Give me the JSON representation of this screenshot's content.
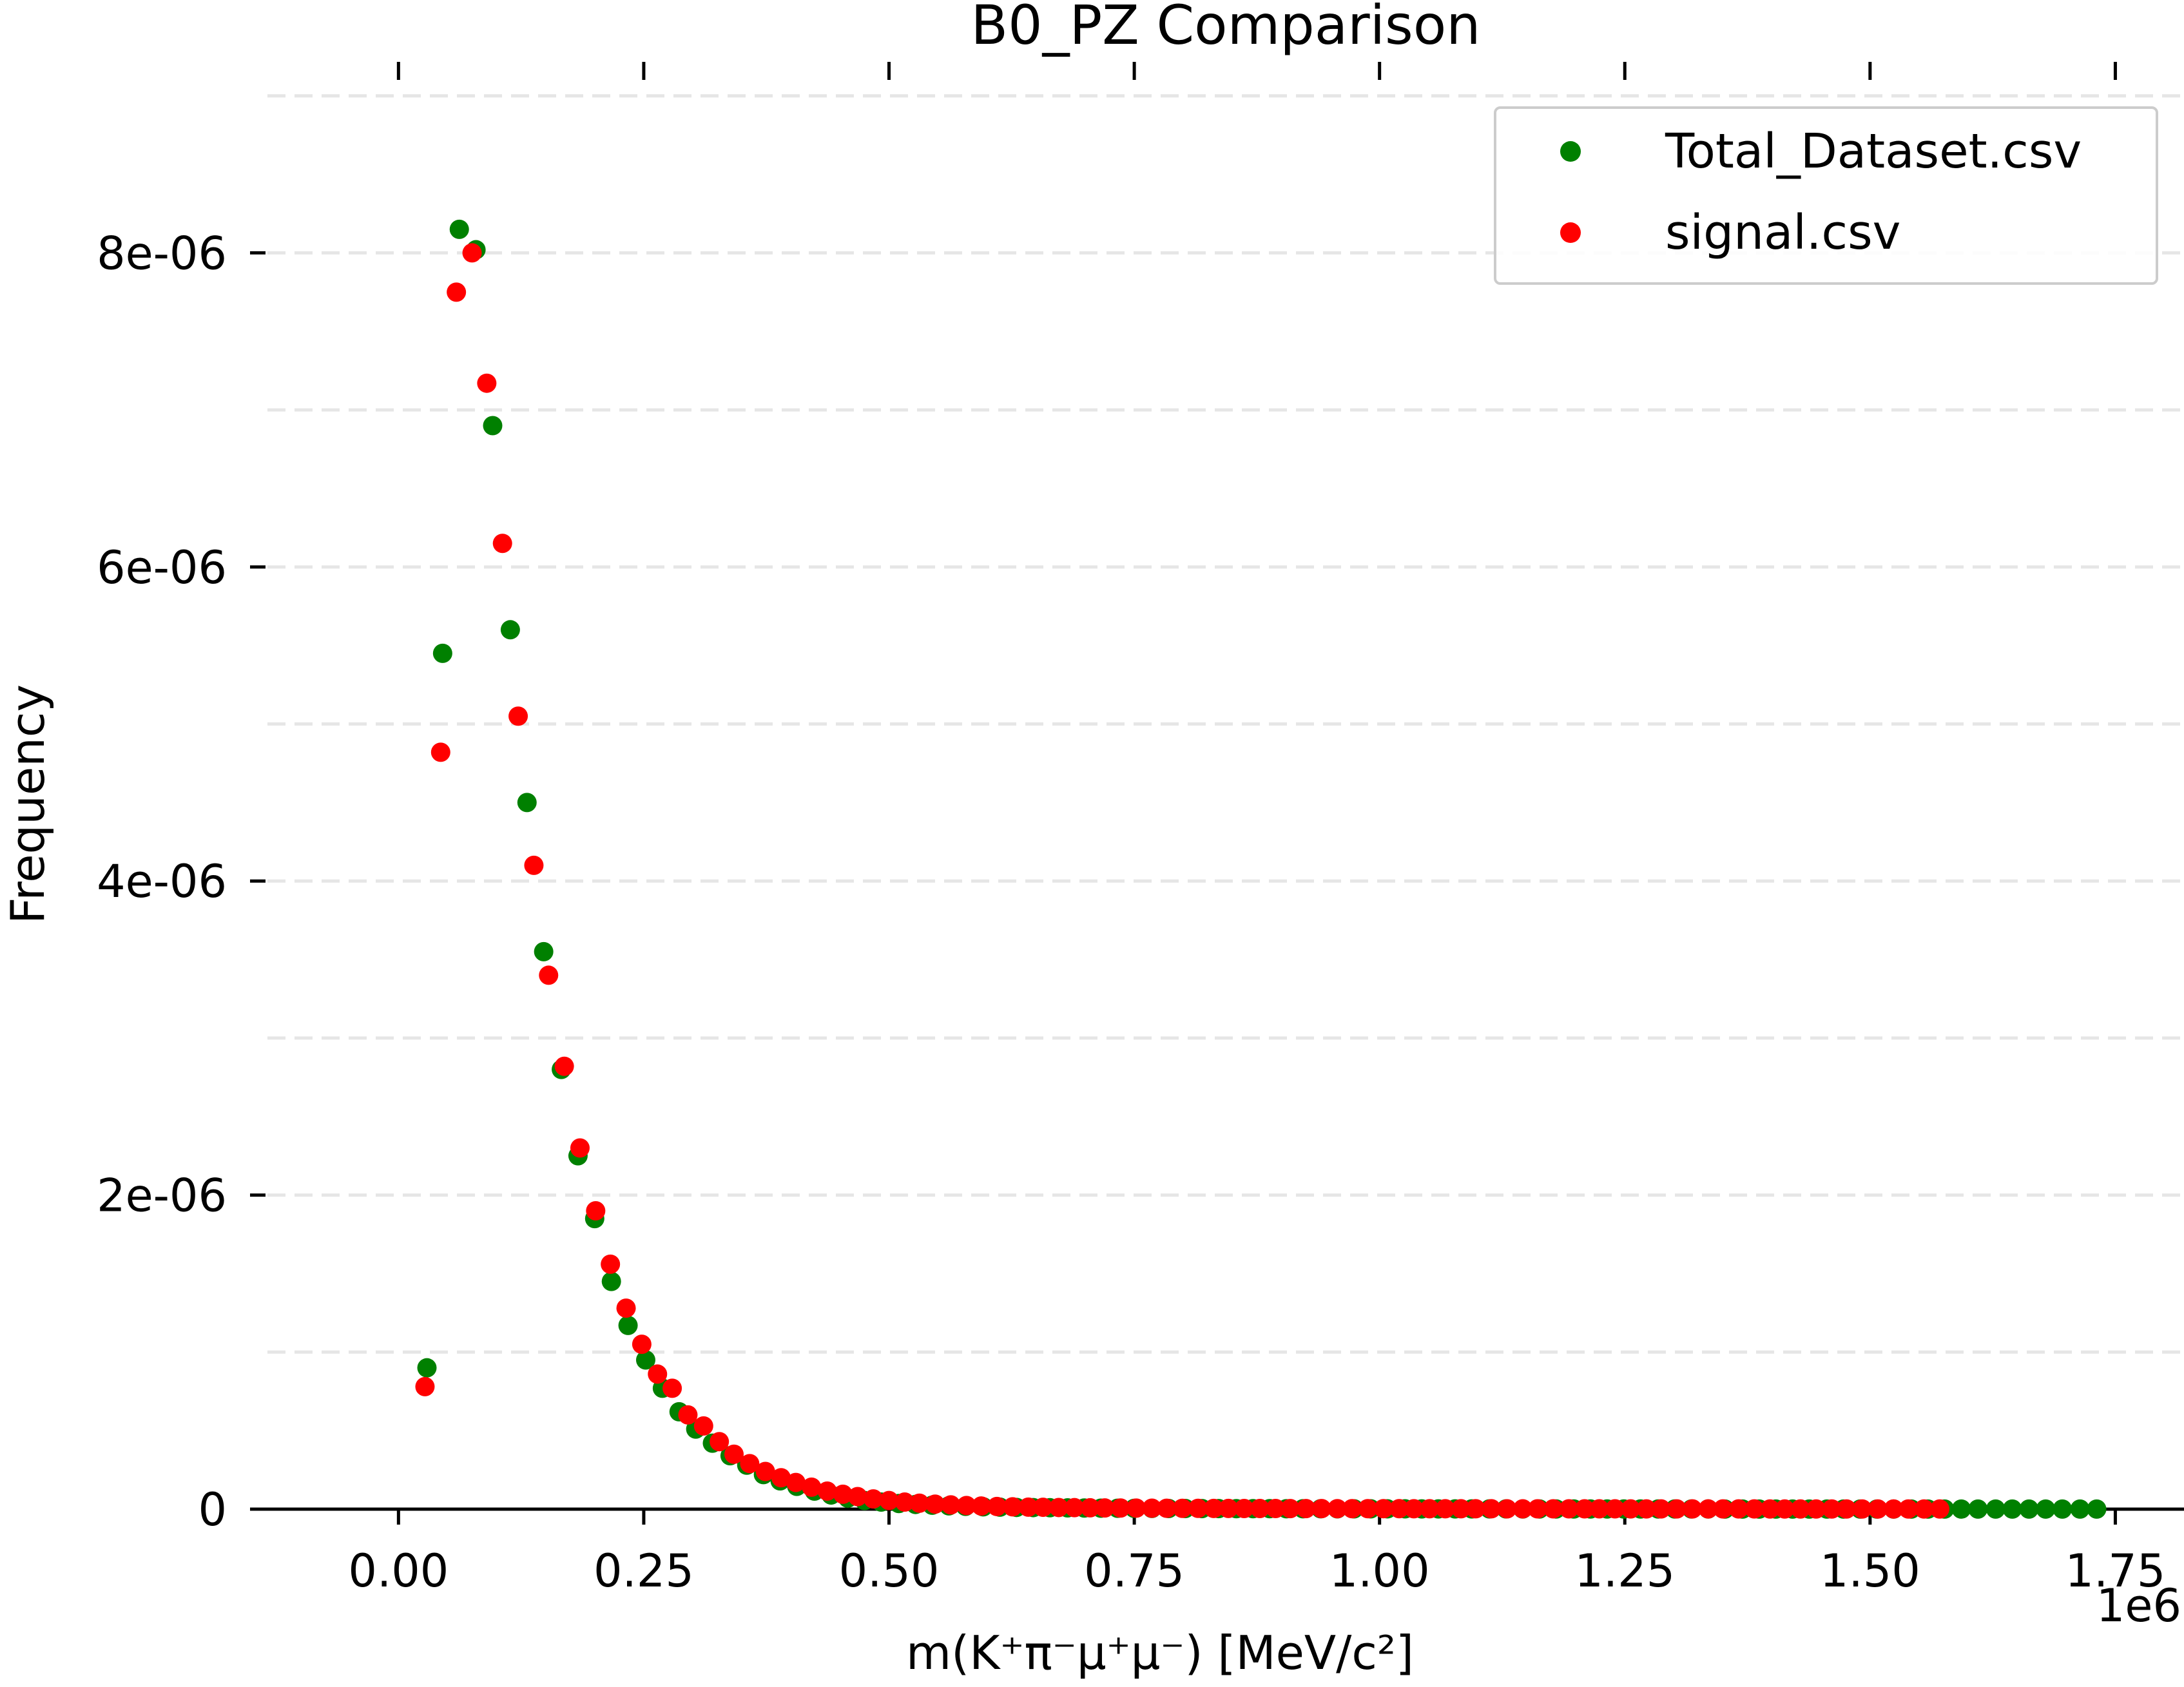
{
  "chart_data": {
    "type": "scatter",
    "title": "B0_PZ Comparison",
    "xlabel": "m(K⁺π⁻μ⁺μ⁻) [MeV/c²]",
    "ylabel": "Frequency",
    "x_offset_label": "1e6",
    "xlim": [
      -0.15,
      1.82
    ],
    "ylim": [
      0,
      9.2e-06
    ],
    "x_ticks": [
      0.0,
      0.25,
      0.5,
      0.75,
      1.0,
      1.25,
      1.5,
      1.75
    ],
    "x_tick_labels": [
      "0.00",
      "0.25",
      "0.50",
      "0.75",
      "1.00",
      "1.25",
      "1.50",
      "1.75"
    ],
    "y_ticks": [
      0,
      2e-06,
      4e-06,
      6e-06,
      8e-06
    ],
    "y_tick_labels": [
      "0",
      "2e-06",
      "4e-06",
      "6e-06",
      "8e-06"
    ],
    "y_grid": [
      1e-06,
      2e-06,
      3e-06,
      4e-06,
      5e-06,
      6e-06,
      7e-06,
      8e-06,
      9e-06
    ],
    "grid": true,
    "legend_position": "top-right",
    "series": [
      {
        "name": "Total_Dataset.csv",
        "color": "#008000",
        "x": [
          0.029,
          0.045,
          0.062,
          0.079,
          0.096,
          0.114,
          0.131,
          0.148,
          0.166,
          0.183,
          0.2,
          0.217,
          0.234,
          0.252,
          0.269,
          0.286,
          0.303,
          0.32,
          0.338,
          0.355,
          0.372,
          0.389,
          0.406,
          0.424,
          0.441,
          0.458,
          0.475,
          0.492,
          0.51,
          0.527,
          0.544,
          0.561,
          0.578,
          0.596,
          0.613,
          0.63,
          0.647,
          0.664,
          0.682,
          0.699,
          0.716,
          0.733,
          0.75,
          0.768,
          0.785,
          0.802,
          0.819,
          0.836,
          0.854,
          0.871,
          0.888,
          0.905,
          0.922,
          0.94,
          0.957,
          0.974,
          0.991,
          1.008,
          1.026,
          1.043,
          1.06,
          1.077,
          1.094,
          1.112,
          1.129,
          1.146,
          1.163,
          1.18,
          1.198,
          1.215,
          1.232,
          1.249,
          1.266,
          1.284,
          1.301,
          1.318,
          1.335,
          1.352,
          1.37,
          1.387,
          1.404,
          1.421,
          1.438,
          1.456,
          1.473,
          1.49,
          1.507,
          1.524,
          1.542,
          1.559,
          1.576,
          1.593,
          1.61,
          1.628,
          1.645,
          1.662,
          1.679,
          1.696,
          1.714,
          1.731
        ],
        "y": [
          9e-07,
          5.45e-06,
          8.15e-06,
          8.02e-06,
          6.9e-06,
          5.6e-06,
          4.5e-06,
          3.55e-06,
          2.8e-06,
          2.25e-06,
          1.85e-06,
          1.45e-06,
          1.17e-06,
          9.5e-07,
          7.7e-07,
          6.2e-07,
          5.1e-07,
          4.2e-07,
          3.4e-07,
          2.8e-07,
          2.2e-07,
          1.8e-07,
          1.45e-07,
          1.15e-07,
          9e-08,
          7e-08,
          5.5e-08,
          4.5e-08,
          3.6e-08,
          3e-08,
          2.5e-08,
          2.1e-08,
          1.8e-08,
          1.5e-08,
          1.3e-08,
          1.1e-08,
          1e-08,
          9e-09,
          8e-09,
          7e-09,
          6e-09,
          5.5e-09,
          5e-09,
          4.5e-09,
          4e-09,
          4e-09,
          3.5e-09,
          3.5e-09,
          3e-09,
          3e-09,
          3e-09,
          2.5e-09,
          2.5e-09,
          2.5e-09,
          2e-09,
          2e-09,
          2e-09,
          2e-09,
          2e-09,
          1.5e-09,
          1.5e-09,
          1.5e-09,
          1.5e-09,
          1.5e-09,
          1.5e-09,
          1e-09,
          1e-09,
          1e-09,
          1e-09,
          1e-09,
          1e-09,
          1e-09,
          1e-09,
          1e-09,
          1e-09,
          1e-09,
          1e-09,
          5e-10,
          5e-10,
          5e-10,
          5e-10,
          5e-10,
          5e-10,
          5e-10,
          5e-10,
          5e-10,
          5e-10,
          5e-10,
          5e-10,
          5e-10,
          5e-10,
          5e-10,
          5e-10,
          5e-10,
          5e-10,
          5e-10,
          5e-10,
          5e-10,
          5e-10,
          5e-10
        ]
      },
      {
        "name": "signal.csv",
        "color": "#ff0000",
        "x": [
          0.027,
          0.043,
          0.059,
          0.075,
          0.09,
          0.106,
          0.122,
          0.138,
          0.153,
          0.169,
          0.185,
          0.201,
          0.216,
          0.232,
          0.248,
          0.264,
          0.279,
          0.295,
          0.311,
          0.327,
          0.342,
          0.358,
          0.374,
          0.39,
          0.405,
          0.421,
          0.437,
          0.453,
          0.468,
          0.484,
          0.5,
          0.516,
          0.531,
          0.547,
          0.563,
          0.579,
          0.594,
          0.61,
          0.626,
          0.642,
          0.657,
          0.673,
          0.689,
          0.705,
          0.72,
          0.736,
          0.752,
          0.768,
          0.783,
          0.799,
          0.815,
          0.831,
          0.846,
          0.862,
          0.878,
          0.894,
          0.909,
          0.925,
          0.941,
          0.957,
          0.972,
          0.988,
          1.004,
          1.02,
          1.035,
          1.051,
          1.067,
          1.083,
          1.098,
          1.114,
          1.13,
          1.146,
          1.161,
          1.177,
          1.193,
          1.209,
          1.224,
          1.24,
          1.256,
          1.272,
          1.287,
          1.303,
          1.319,
          1.335,
          1.35,
          1.366,
          1.382,
          1.398,
          1.413,
          1.429,
          1.445,
          1.461,
          1.476,
          1.492,
          1.508,
          1.524,
          1.539,
          1.555,
          1.571
        ],
        "y": [
          7.8e-07,
          4.82e-06,
          7.75e-06,
          8e-06,
          7.17e-06,
          6.15e-06,
          5.05e-06,
          4.1e-06,
          3.4e-06,
          2.82e-06,
          2.3e-06,
          1.9e-06,
          1.56e-06,
          1.28e-06,
          1.05e-06,
          8.6e-07,
          7.7e-07,
          6e-07,
          5.3e-07,
          4.3e-07,
          3.5e-07,
          2.9e-07,
          2.4e-07,
          2e-07,
          1.7e-07,
          1.4e-07,
          1.15e-07,
          9.5e-08,
          8e-08,
          6.5e-08,
          5.5e-08,
          4.5e-08,
          3.8e-08,
          3.2e-08,
          2.7e-08,
          2.3e-08,
          2e-08,
          1.7e-08,
          1.5e-08,
          1.3e-08,
          1.2e-08,
          1.05e-08,
          9.5e-09,
          8.5e-09,
          7.5e-09,
          7e-09,
          6.5e-09,
          6e-09,
          5.5e-09,
          5e-09,
          5e-09,
          4.5e-09,
          4.5e-09,
          4e-09,
          4e-09,
          4e-09,
          3.5e-09,
          3.5e-09,
          3.5e-09,
          3e-09,
          3e-09,
          3e-09,
          3e-09,
          3e-09,
          2.5e-09,
          2.5e-09,
          2.5e-09,
          2.5e-09,
          2.5e-09,
          2.5e-09,
          2e-09,
          2e-09,
          2e-09,
          2e-09,
          2e-09,
          2e-09,
          2e-09,
          2e-09,
          1.5e-09,
          1.5e-09,
          1.5e-09,
          1.5e-09,
          1.5e-09,
          1.5e-09,
          1.5e-09,
          1.5e-09,
          1.5e-09,
          1e-09,
          1e-09,
          1e-09,
          1e-09,
          1e-09,
          1e-09,
          1e-09,
          1e-09,
          1e-09,
          1e-09,
          1e-09,
          1e-09
        ]
      }
    ]
  }
}
